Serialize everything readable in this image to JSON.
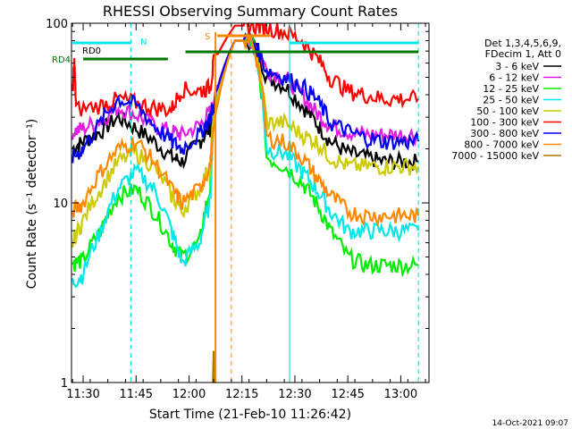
{
  "chart_data": {
    "type": "line",
    "title": "RHESSI Observing Summary Count Rates",
    "xlabel": "Start Time (21-Feb-10 11:26:42)",
    "ylabel": "Count Rate (s⁻¹ detector⁻¹)",
    "yscale": "log",
    "ylim": [
      1,
      100
    ],
    "xlim_minutes": [
      -3.3,
      98
    ],
    "x_ticks": [
      "11:30",
      "11:45",
      "12:00",
      "12:15",
      "12:30",
      "12:45",
      "13:00"
    ],
    "y_ticks": [
      "1",
      "10",
      "100"
    ],
    "legend_header": [
      "Det 1,3,4,5,6,9,",
      "FDecim 1, Att 0"
    ],
    "legend_placement": "right",
    "footer_date": "14-Oct-2021 09:07",
    "x_minutes_unit_note": "x values are minutes after 11:30",
    "series": [
      {
        "name": "3 - 6 keV",
        "color": "#000000",
        "x": [
          -3,
          0,
          5,
          10,
          15,
          20,
          25,
          28,
          33,
          36,
          37,
          43,
          48,
          52,
          57,
          62,
          66,
          70,
          75,
          80,
          85,
          90,
          95
        ],
        "y": [
          20,
          22,
          25,
          30,
          26,
          22,
          18,
          17,
          22,
          26,
          30,
          80,
          80,
          50,
          45,
          35,
          28,
          22,
          19,
          18,
          17,
          17,
          17
        ]
      },
      {
        "name": "6 - 12 keV",
        "color": "#e020e0",
        "x": [
          -3,
          0,
          5,
          10,
          15,
          20,
          25,
          28,
          33,
          36,
          37,
          43,
          48,
          52,
          57,
          62,
          66,
          70,
          75,
          80,
          85,
          90,
          95
        ],
        "y": [
          25,
          26,
          29,
          34,
          31,
          27,
          25,
          24,
          27,
          32,
          36,
          80,
          80,
          55,
          50,
          40,
          32,
          27,
          25,
          24,
          24,
          24,
          24
        ]
      },
      {
        "name": "12 - 25 keV",
        "color": "#00ee00",
        "x": [
          -3,
          0,
          5,
          10,
          15,
          20,
          25,
          28,
          33,
          36,
          37,
          43,
          48,
          52,
          57,
          62,
          66,
          70,
          75,
          80,
          85,
          90,
          95
        ],
        "y": [
          4.6,
          4.8,
          7,
          11,
          12,
          9,
          6,
          5,
          6,
          12,
          30,
          80,
          80,
          18,
          16,
          13,
          10,
          7,
          5,
          4.5,
          4.5,
          4.5,
          4.5
        ]
      },
      {
        "name": "25 - 50 keV",
        "color": "#00e8e8",
        "x": [
          -3,
          0,
          5,
          10,
          15,
          20,
          25,
          28,
          33,
          36,
          37,
          43,
          48,
          52,
          57,
          62,
          66,
          70,
          75,
          80,
          85,
          90,
          95
        ],
        "y": [
          3.6,
          4,
          7,
          12,
          15,
          12,
          7,
          4.6,
          6,
          10,
          28,
          80,
          80,
          20,
          19,
          15,
          12,
          9,
          7,
          7,
          7,
          7,
          7
        ]
      },
      {
        "name": "50 - 100 keV",
        "color": "#cccc00",
        "x": [
          -3,
          0,
          5,
          10,
          15,
          20,
          25,
          28,
          33,
          36,
          37,
          43,
          48,
          52,
          57,
          62,
          66,
          70,
          75,
          80,
          85,
          90,
          95
        ],
        "y": [
          6,
          8,
          12,
          17,
          19,
          16,
          11,
          9,
          12,
          16,
          30,
          80,
          80,
          28,
          28,
          24,
          22,
          18,
          16,
          16,
          16,
          16,
          16
        ]
      },
      {
        "name": "100 - 300 keV",
        "color": "#ff0000",
        "x": [
          -3,
          -2.5,
          -2,
          5,
          10,
          15,
          20,
          25,
          28,
          33,
          36,
          37,
          43,
          48,
          52,
          57,
          62,
          66,
          70,
          75,
          80,
          85,
          90,
          95
        ],
        "y": [
          40,
          60,
          33,
          35,
          38,
          36,
          34,
          33,
          43,
          42,
          44,
          60,
          97,
          97,
          95,
          90,
          80,
          65,
          50,
          42,
          40,
          38,
          38,
          38
        ]
      },
      {
        "name": "300 - 800 keV",
        "color": "#0000ee",
        "x": [
          -3,
          0,
          5,
          10,
          15,
          20,
          25,
          28,
          33,
          36,
          37,
          43,
          48,
          52,
          57,
          62,
          66,
          70,
          75,
          80,
          85,
          90,
          95
        ],
        "y": [
          18,
          20,
          28,
          38,
          35,
          27,
          22,
          20,
          24,
          30,
          35,
          80,
          80,
          55,
          50,
          45,
          38,
          28,
          25,
          23,
          22,
          22,
          22
        ]
      },
      {
        "name": "800 - 7000 keV",
        "color": "#ff8800",
        "x": [
          -3,
          0,
          5,
          10,
          15,
          20,
          25,
          28,
          33,
          36,
          37,
          43,
          48,
          52,
          57,
          62,
          66,
          70,
          75,
          80,
          85,
          90,
          95
        ],
        "y": [
          9,
          10,
          15,
          20,
          22,
          17,
          12,
          10,
          12,
          16,
          25,
          80,
          80,
          23,
          22,
          18,
          14,
          11,
          9,
          8.5,
          8.5,
          8.5,
          8.5
        ]
      },
      {
        "name": "7000 - 15000 keV",
        "color": "#aa7700",
        "x": [
          36.8,
          37,
          37.2
        ],
        "y": [
          1,
          1.5,
          1
        ]
      }
    ],
    "annotations": [
      {
        "text": "N",
        "color": "#00e0e0"
      },
      {
        "text": "S",
        "color": "#ff8800"
      },
      {
        "text": "RD0",
        "color": "#000000"
      },
      {
        "text": "RD4",
        "color": "#007700"
      }
    ]
  }
}
